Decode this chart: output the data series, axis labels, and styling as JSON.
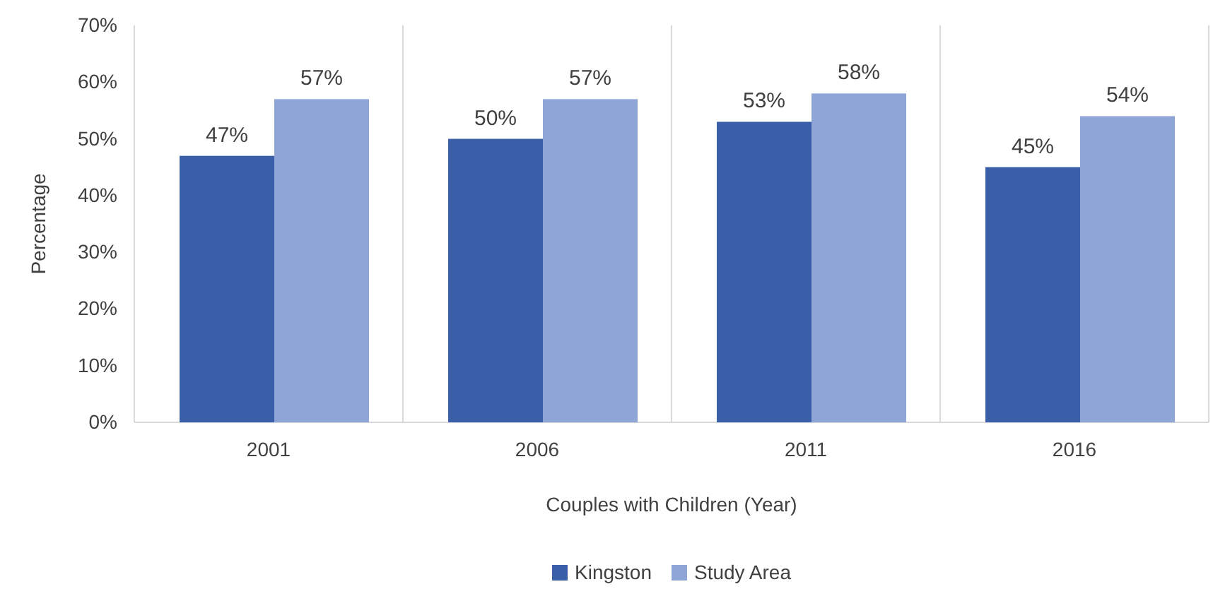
{
  "chart_data": {
    "type": "bar",
    "xlabel": "Couples with Children (Year)",
    "ylabel": "Percentage",
    "categories": [
      "2001",
      "2006",
      "2011",
      "2016"
    ],
    "series": [
      {
        "name": "Kingston",
        "color": "#3a5ea8",
        "values": [
          47,
          50,
          53,
          45
        ],
        "value_labels": [
          "47%",
          "50%",
          "53%",
          "45%"
        ]
      },
      {
        "name": "Study Area",
        "color": "#8fa5d6",
        "values": [
          57,
          57,
          58,
          54
        ],
        "value_labels": [
          "57%",
          "57%",
          "58%",
          "54%"
        ]
      }
    ],
    "ylim": [
      0,
      70
    ],
    "yticks": [
      {
        "value": 0,
        "label": "0%"
      },
      {
        "value": 10,
        "label": "10%"
      },
      {
        "value": 20,
        "label": "20%"
      },
      {
        "value": 30,
        "label": "30%"
      },
      {
        "value": 40,
        "label": "40%"
      },
      {
        "value": 50,
        "label": "50%"
      },
      {
        "value": 60,
        "label": "60%"
      },
      {
        "value": 70,
        "label": "70%"
      }
    ],
    "grid": "x",
    "legend": "bottom"
  }
}
